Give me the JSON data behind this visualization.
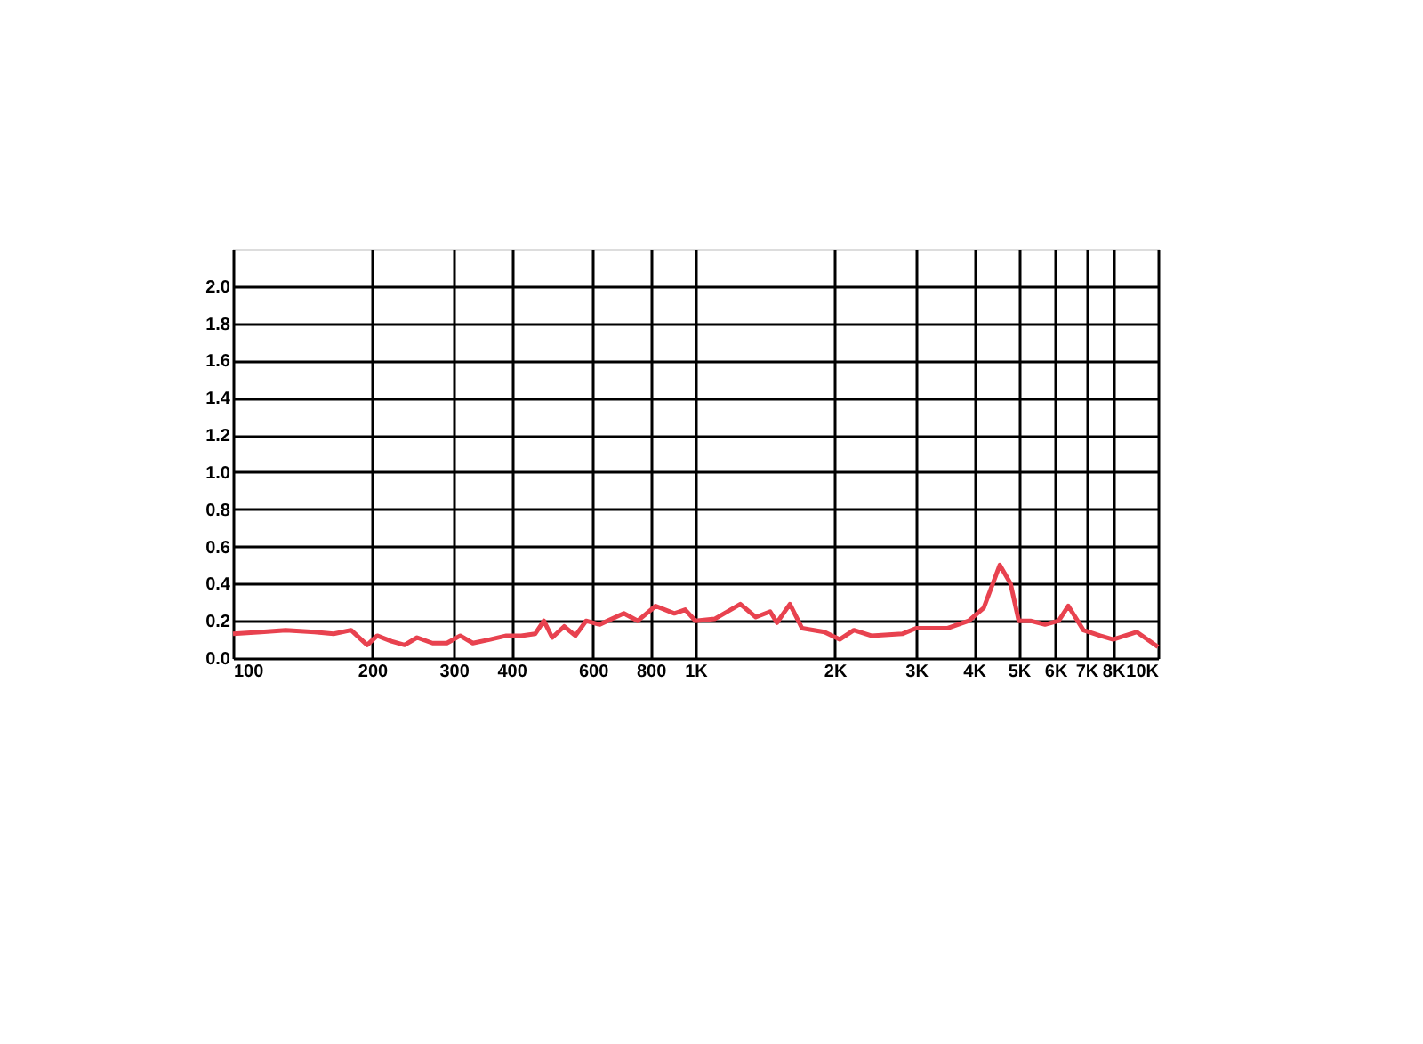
{
  "chart_data": {
    "type": "line",
    "log": "x",
    "grid": true,
    "marker": "none",
    "line_style": "solid",
    "xlim": [
      100,
      10000
    ],
    "xticks": [
      100,
      200,
      300,
      400,
      600,
      800,
      {
        "value": 1000,
        "label": "1K"
      },
      {
        "value": 2000,
        "label": "2K"
      },
      {
        "value": 3000,
        "label": "3K"
      },
      {
        "value": 4000,
        "label": "4K"
      },
      {
        "value": 5000,
        "label": "5K"
      },
      {
        "value": 6000,
        "label": "6K"
      },
      {
        "value": 7000,
        "label": "7K"
      },
      {
        "value": 8000,
        "label": "8K"
      },
      {
        "value": 10000,
        "label": "10K"
      }
    ],
    "ylim": [
      0,
      2.2
    ],
    "yticks": [
      {
        "value": 0,
        "label": "0.0"
      },
      0.2,
      0.4,
      0.6,
      0.8,
      {
        "value": 1,
        "label": "1.0"
      },
      1.2,
      1.4,
      1.6,
      1.8,
      {
        "value": 2,
        "label": "2.0"
      }
    ],
    "series": [
      {
        "color": "#e8424f",
        "x": [
          100,
          115,
          130,
          150,
          165,
          180,
          195,
          205,
          220,
          235,
          250,
          270,
          290,
          310,
          330,
          360,
          390,
          420,
          450,
          470,
          490,
          520,
          550,
          580,
          620,
          700,
          750,
          820,
          900,
          950,
          1000,
          1100,
          1250,
          1350,
          1450,
          1500,
          1600,
          1700,
          1900,
          2050,
          2200,
          2400,
          2800,
          3000,
          3500,
          3900,
          4200,
          4550,
          4800,
          5000,
          5300,
          5700,
          6100,
          6400,
          6900,
          7500,
          8000,
          9000,
          10000
        ],
        "values": [
          0.13,
          0.14,
          0.15,
          0.14,
          0.13,
          0.15,
          0.07,
          0.12,
          0.09,
          0.07,
          0.11,
          0.08,
          0.08,
          0.12,
          0.08,
          0.1,
          0.12,
          0.12,
          0.13,
          0.2,
          0.11,
          0.17,
          0.12,
          0.2,
          0.18,
          0.24,
          0.2,
          0.28,
          0.24,
          0.26,
          0.2,
          0.21,
          0.29,
          0.22,
          0.25,
          0.19,
          0.29,
          0.16,
          0.14,
          0.1,
          0.15,
          0.12,
          0.13,
          0.16,
          0.16,
          0.2,
          0.27,
          0.5,
          0.4,
          0.2,
          0.2,
          0.18,
          0.2,
          0.28,
          0.15,
          0.12,
          0.1,
          0.14,
          0.06
        ]
      }
    ]
  }
}
